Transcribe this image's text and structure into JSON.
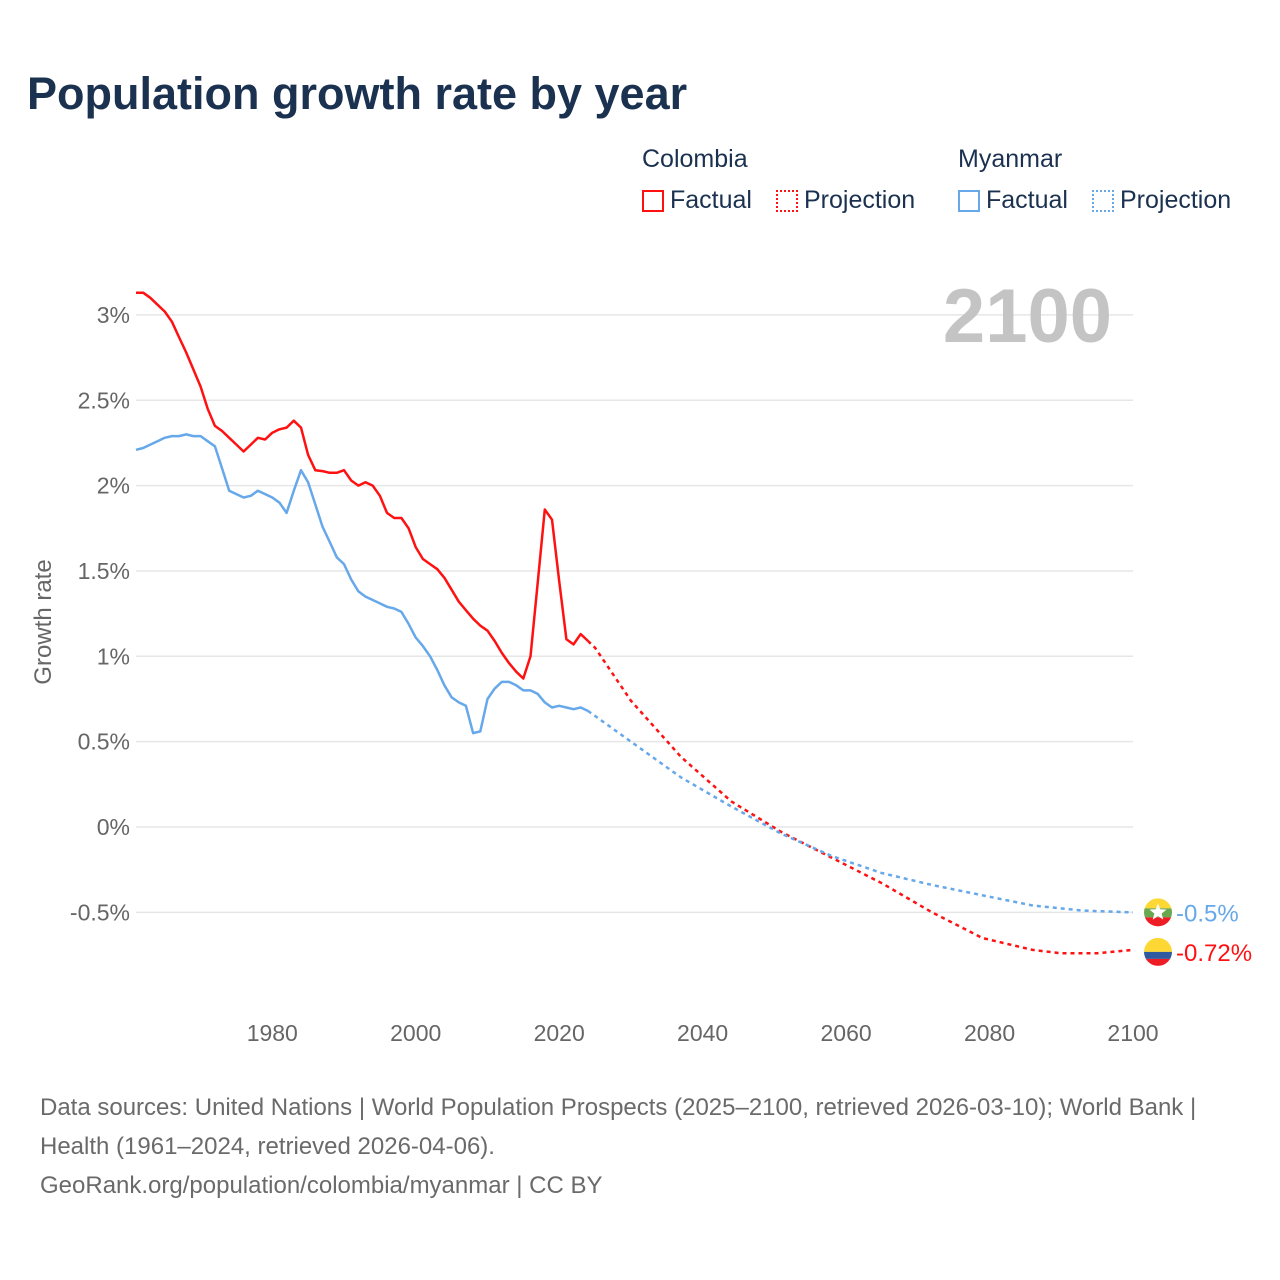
{
  "title": "Population growth rate by year",
  "legend": {
    "colombia": {
      "country": "Colombia",
      "factual": "Factual",
      "projection": "Projection"
    },
    "myanmar": {
      "country": "Myanmar",
      "factual": "Factual",
      "projection": "Projection"
    }
  },
  "year_label": "2100",
  "footer": {
    "sources": "Data sources: United Nations | World Population Prospects (2025–2100, retrieved 2026-03-10); World Bank | Health (1961–2024, retrieved 2026-04-06).",
    "credit": "GeoRank.org/population/colombia/myanmar | CC BY"
  },
  "chart_data": {
    "type": "line",
    "title": "Population growth rate by year",
    "xlabel": "",
    "ylabel": "Growth rate",
    "xlim": [
      1961,
      2100
    ],
    "ylim": [
      -1.0,
      3.15
    ],
    "x_ticks": [
      1980,
      2000,
      2020,
      2040,
      2060,
      2080,
      2100
    ],
    "x_tick_labels": [
      "1980",
      "2000",
      "2020",
      "2040",
      "2060",
      "2080",
      "2100"
    ],
    "y_ticks": [
      3,
      2.5,
      2,
      1.5,
      1,
      0.5,
      0,
      -0.5
    ],
    "y_tick_labels": [
      "3%",
      "2.5%",
      "2%",
      "1.5%",
      "1%",
      "0.5%",
      "0%",
      "-0.5%"
    ],
    "grid": true,
    "legend_position": "top-right",
    "series": [
      {
        "name": "Colombia",
        "color": "#ff1111",
        "end_label": "-0.72%",
        "factual": {
          "x": [
            1961,
            1962,
            1963,
            1964,
            1965,
            1966,
            1967,
            1968,
            1969,
            1970,
            1971,
            1972,
            1973,
            1974,
            1975,
            1976,
            1977,
            1978,
            1979,
            1980,
            1981,
            1982,
            1983,
            1984,
            1985,
            1986,
            1987,
            1988,
            1989,
            1990,
            1991,
            1992,
            1993,
            1994,
            1995,
            1996,
            1997,
            1998,
            1999,
            2000,
            2001,
            2002,
            2003,
            2004,
            2005,
            2006,
            2007,
            2008,
            2009,
            2010,
            2011,
            2012,
            2013,
            2014,
            2015,
            2016,
            2017,
            2018,
            2019,
            2020,
            2021,
            2022,
            2023,
            2024
          ],
          "y": [
            3.13,
            3.13,
            3.1,
            3.06,
            3.02,
            2.96,
            2.87,
            2.78,
            2.68,
            2.58,
            2.45,
            2.35,
            2.32,
            2.28,
            2.24,
            2.2,
            2.24,
            2.28,
            2.27,
            2.31,
            2.33,
            2.34,
            2.38,
            2.34,
            2.18,
            2.09,
            2.085,
            2.075,
            2.075,
            2.09,
            2.03,
            2.0,
            2.02,
            2.0,
            1.94,
            1.84,
            1.81,
            1.81,
            1.75,
            1.64,
            1.57,
            1.54,
            1.51,
            1.46,
            1.39,
            1.32,
            1.27,
            1.22,
            1.18,
            1.15,
            1.09,
            1.02,
            0.96,
            0.91,
            0.87,
            1.0,
            1.43,
            1.86,
            1.8,
            1.44,
            1.1,
            1.07,
            1.13,
            1.09
          ]
        },
        "projection": {
          "x": [
            2024,
            2025,
            2030,
            2037,
            2044,
            2051,
            2058,
            2065,
            2072,
            2079,
            2086,
            2090,
            2095,
            2100
          ],
          "y": [
            1.09,
            1.05,
            0.74,
            0.41,
            0.15,
            -0.03,
            -0.18,
            -0.33,
            -0.5,
            -0.65,
            -0.72,
            -0.74,
            -0.74,
            -0.72
          ]
        }
      },
      {
        "name": "Myanmar",
        "color": "#66a8ea",
        "end_label": "-0.5%",
        "factual": {
          "x": [
            1961,
            1962,
            1963,
            1964,
            1965,
            1966,
            1967,
            1968,
            1969,
            1970,
            1971,
            1972,
            1973,
            1974,
            1975,
            1976,
            1977,
            1978,
            1979,
            1980,
            1981,
            1982,
            1983,
            1984,
            1985,
            1986,
            1987,
            1988,
            1989,
            1990,
            1991,
            1992,
            1993,
            1994,
            1995,
            1996,
            1997,
            1998,
            1999,
            2000,
            2001,
            2002,
            2003,
            2004,
            2005,
            2006,
            2007,
            2008,
            2009,
            2010,
            2011,
            2012,
            2013,
            2014,
            2015,
            2016,
            2017,
            2018,
            2019,
            2020,
            2021,
            2022,
            2023,
            2024
          ],
          "y": [
            2.21,
            2.22,
            2.24,
            2.26,
            2.28,
            2.29,
            2.29,
            2.3,
            2.29,
            2.29,
            2.26,
            2.23,
            2.1,
            1.97,
            1.95,
            1.93,
            1.94,
            1.97,
            1.95,
            1.93,
            1.9,
            1.84,
            1.97,
            2.09,
            2.02,
            1.89,
            1.76,
            1.67,
            1.58,
            1.54,
            1.45,
            1.38,
            1.35,
            1.33,
            1.31,
            1.29,
            1.28,
            1.26,
            1.19,
            1.11,
            1.06,
            1.0,
            0.92,
            0.83,
            0.76,
            0.73,
            0.71,
            0.55,
            0.56,
            0.75,
            0.81,
            0.85,
            0.85,
            0.83,
            0.8,
            0.8,
            0.78,
            0.73,
            0.7,
            0.71,
            0.7,
            0.69,
            0.7,
            0.68
          ]
        },
        "projection": {
          "x": [
            2024,
            2025,
            2030,
            2037,
            2044,
            2051,
            2058,
            2065,
            2072,
            2079,
            2086,
            2093,
            2100
          ],
          "y": [
            0.68,
            0.65,
            0.5,
            0.29,
            0.12,
            -0.04,
            -0.17,
            -0.27,
            -0.34,
            -0.4,
            -0.46,
            -0.49,
            -0.5
          ]
        }
      }
    ]
  }
}
